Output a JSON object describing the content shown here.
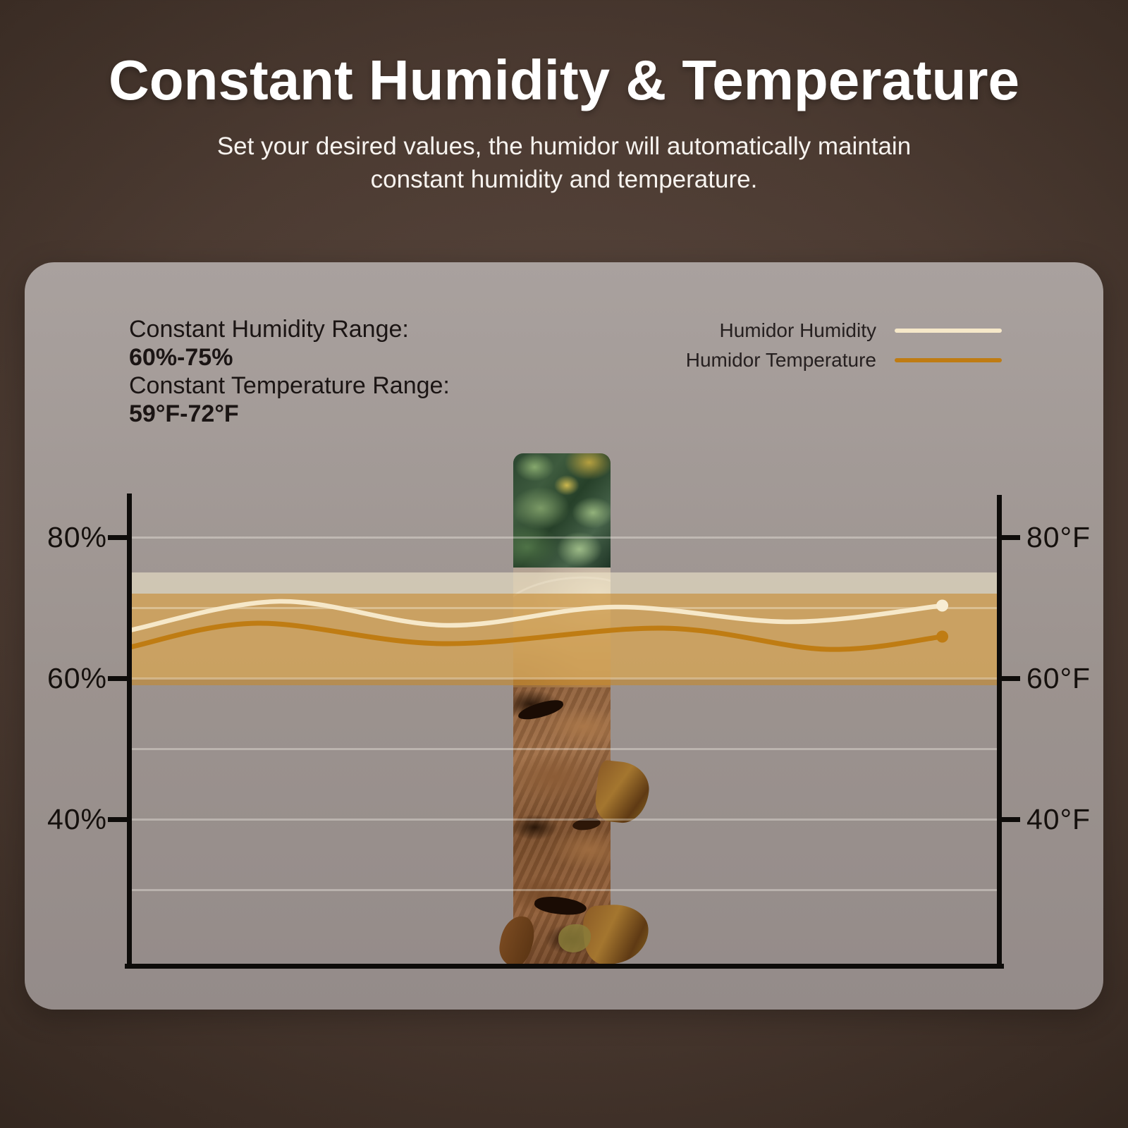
{
  "header": {
    "title": "Constant Humidity & Temperature",
    "subtitle_line1": "Set your desired values, the humidor will automatically maintain",
    "subtitle_line2": "constant humidity and temperature."
  },
  "info": {
    "humidity_label": "Constant Humidity Range:",
    "humidity_value": "60%-75%",
    "temperature_label": "Constant Temperature Range:",
    "temperature_value": "59°F-72°F"
  },
  "chart_data": {
    "type": "line",
    "title": "",
    "legend_position": "top-right",
    "grid": true,
    "gridlines": [
      80,
      70,
      60,
      50,
      40,
      30
    ],
    "y_ticks": [
      80,
      60,
      40
    ],
    "left_axis": {
      "unit": "%",
      "labels": [
        "80%",
        "60%",
        "40%"
      ]
    },
    "right_axis": {
      "unit": "°F",
      "labels": [
        "80°F",
        "60°F",
        "40°F"
      ]
    },
    "ylim": [
      19.2,
      86.2
    ],
    "bands": [
      {
        "name": "humidity-range",
        "min": 60,
        "max": 75,
        "color": "rgba(238,227,200,0.62)"
      },
      {
        "name": "temperature-range",
        "min": 59,
        "max": 72,
        "color": "rgba(198,137,44,0.60)"
      }
    ],
    "series": [
      {
        "name": "Humidor Humidity",
        "color": "#f6e8c9",
        "dot_color": "#f8edd3",
        "x_frac": [
          0,
          0.172,
          0.364,
          0.558,
          0.76,
          0.934
        ],
        "values": [
          66.8,
          70.9,
          67.5,
          70.1,
          68.0,
          70.3
        ]
      },
      {
        "name": "Humidor Temperature",
        "color": "#bf7c13",
        "dot_color": "#bf7c13",
        "x_frac": [
          0,
          0.147,
          0.36,
          0.613,
          0.801,
          0.934
        ],
        "values": [
          64.4,
          67.8,
          64.9,
          67.1,
          64.1,
          65.9
        ]
      }
    ]
  },
  "colors": {
    "background": "#4c3b32",
    "panel": "#9e9593",
    "axis": "#0e0c0a",
    "text_dark": "#1b1514",
    "text_light": "#ffffff"
  }
}
